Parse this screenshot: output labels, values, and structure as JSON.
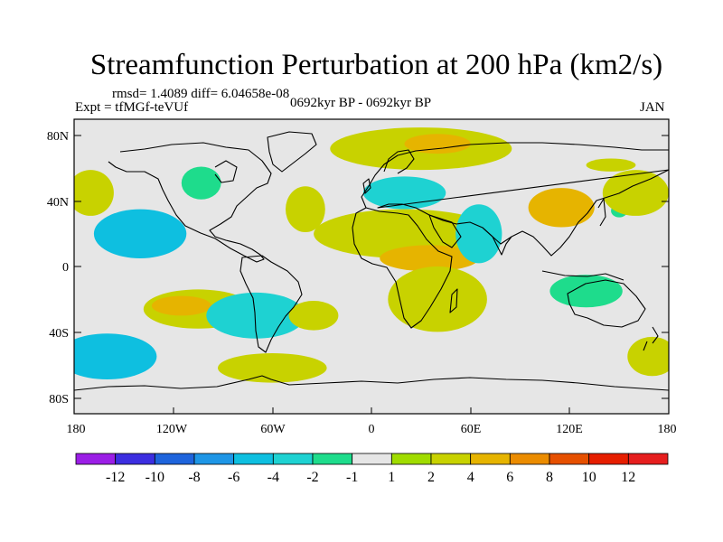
{
  "title": "Streamfunction Perturbation at 200 hPa (km2/s)",
  "rmsd_line": "rmsd= 1.4089 diff= 6.04658e-08",
  "expt_line": "Expt = tfMGf-teVUf",
  "period_line": "0692kyr BP - 0692kyr BP",
  "month": "JAN",
  "axes": {
    "lat_labels": [
      "80N",
      "40N",
      "0",
      "40S",
      "80S"
    ],
    "lon_labels": [
      "180",
      "120W",
      "60W",
      "0",
      "60E",
      "120E",
      "180"
    ]
  },
  "colorbar": {
    "labels": [
      "-12",
      "-10",
      "-8",
      "-6",
      "-4",
      "-2",
      "-1",
      "1",
      "2",
      "4",
      "6",
      "8",
      "10",
      "12"
    ],
    "colors": [
      "#9b1ee6",
      "#3c2ee0",
      "#1e64dc",
      "#1e96e6",
      "#0ebfe0",
      "#1ed2d2",
      "#1edc8c",
      "#e6e6e6",
      "#a0dc00",
      "#c8d200",
      "#e6b400",
      "#eb8c00",
      "#e65000",
      "#e61e00",
      "#e61e1e"
    ]
  },
  "chart_data": {
    "type": "heatmap",
    "title": "Streamfunction Perturbation at 200 hPa (km2/s)",
    "variable": "Streamfunction perturbation",
    "level": "200 hPa",
    "units": "km2/s",
    "month": "JAN",
    "lon_range": [
      -180,
      180
    ],
    "lat_range": [
      -90,
      90
    ],
    "contour_levels": [
      -12,
      -10,
      -8,
      -6,
      -4,
      -2,
      -1,
      1,
      2,
      4,
      6,
      8,
      10,
      12
    ],
    "features": [
      {
        "lon": -140,
        "lat": 20,
        "r_lon": 28,
        "r_lat": 15,
        "value": -6
      },
      {
        "lon": -103,
        "lat": 51,
        "r_lon": 12,
        "r_lat": 10,
        "value": -2
      },
      {
        "lon": -105,
        "lat": -26,
        "r_lon": 33,
        "r_lat": 12,
        "value": 2
      },
      {
        "lon": -115,
        "lat": -24,
        "r_lon": 18,
        "r_lat": 6,
        "value": 4
      },
      {
        "lon": -170,
        "lat": 45,
        "r_lon": 14,
        "r_lat": 14,
        "value": 2
      },
      {
        "lon": -160,
        "lat": -55,
        "r_lon": 30,
        "r_lat": 14,
        "value": -6
      },
      {
        "lon": -70,
        "lat": -30,
        "r_lon": 30,
        "r_lat": 14,
        "value": -4
      },
      {
        "lon": -35,
        "lat": -30,
        "r_lon": 15,
        "r_lat": 9,
        "value": 2
      },
      {
        "lon": -60,
        "lat": -62,
        "r_lon": 33,
        "r_lat": 9,
        "value": 2
      },
      {
        "lon": -125,
        "lat": 80,
        "r_lon": 60,
        "r_lat": 12,
        "value": -1
      },
      {
        "lon": 30,
        "lat": 72,
        "r_lon": 55,
        "r_lat": 13,
        "value": 2
      },
      {
        "lon": 40,
        "lat": 75,
        "r_lon": 20,
        "r_lat": 6,
        "value": 4
      },
      {
        "lon": 20,
        "lat": 45,
        "r_lon": 25,
        "r_lat": 10,
        "value": -4
      },
      {
        "lon": 20,
        "lat": 20,
        "r_lon": 55,
        "r_lat": 15,
        "value": 2
      },
      {
        "lon": 35,
        "lat": 5,
        "r_lon": 30,
        "r_lat": 8,
        "value": 4
      },
      {
        "lon": -40,
        "lat": 35,
        "r_lon": 12,
        "r_lat": 14,
        "value": 2
      },
      {
        "lon": 65,
        "lat": 20,
        "r_lon": 14,
        "r_lat": 18,
        "value": -4
      },
      {
        "lon": 40,
        "lat": -20,
        "r_lon": 30,
        "r_lat": 20,
        "value": 2
      },
      {
        "lon": 115,
        "lat": 36,
        "r_lon": 20,
        "r_lat": 12,
        "value": 4
      },
      {
        "lon": 150,
        "lat": 34,
        "r_lon": 5,
        "r_lat": 4,
        "value": -2
      },
      {
        "lon": 160,
        "lat": 45,
        "r_lon": 20,
        "r_lat": 14,
        "value": 2
      },
      {
        "lon": 130,
        "lat": -15,
        "r_lon": 22,
        "r_lat": 10,
        "value": -2
      },
      {
        "lon": 145,
        "lat": 62,
        "r_lon": 15,
        "r_lat": 4,
        "value": 2
      },
      {
        "lon": 170,
        "lat": -55,
        "r_lon": 15,
        "r_lat": 12,
        "value": 2
      }
    ]
  }
}
